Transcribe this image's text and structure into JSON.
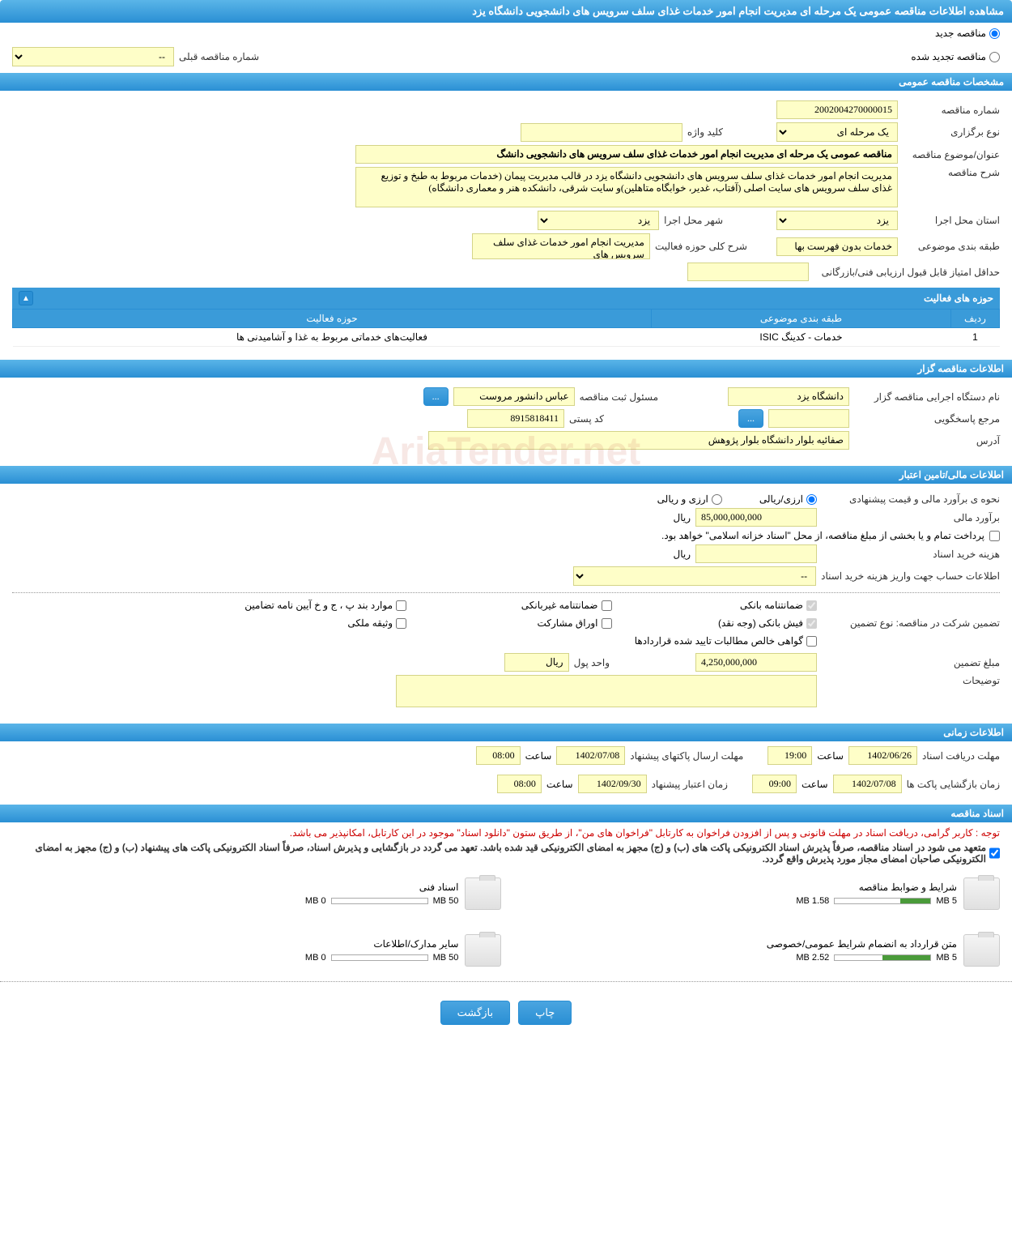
{
  "pageTitle": "مشاهده اطلاعات مناقصه عمومی یک مرحله ای مدیریت انجام امور خدمات غذای سلف سرویس های دانشجویی دانشگاه یزد",
  "tenderType": {
    "new": "مناقصه جدید",
    "renewed": "مناقصه تجدید شده",
    "prevNumberLabel": "شماره مناقصه قبلی",
    "prevNumberValue": "--"
  },
  "sections": {
    "general": "مشخصات مناقصه عمومی",
    "organizer": "اطلاعات مناقصه گزار",
    "financial": "اطلاعات مالی/تامین اعتبار",
    "timing": "اطلاعات زمانی",
    "documents": "اسناد مناقصه"
  },
  "general": {
    "tenderNumberLabel": "شماره مناقصه",
    "tenderNumber": "2002004270000015",
    "holdingTypeLabel": "نوع برگزاری",
    "holdingType": "یک مرحله ای",
    "keywordLabel": "کلید واژه",
    "keyword": "",
    "subjectLabel": "عنوان/موضوع مناقصه",
    "subject": "مناقصه عمومی یک مرحله ای مدیریت انجام امور خدمات غذای سلف سرویس های دانشجویی دانشگ",
    "descLabel": "شرح مناقصه",
    "desc": "مدیریت انجام امور خدمات غذای سلف سرویس های دانشجویی دانشگاه یزد در قالب مدیریت پیمان (خدمات مربوط به طبخ و توزیع  غذای سلف سرویس های سایت اصلی (آفتاب، غدیر، خوابگاه متاهلین)و سایت شرقی، دانشکده هنر و معماری دانشگاه)",
    "provinceLabel": "استان محل اجرا",
    "province": "یزد",
    "cityLabel": "شهر محل اجرا",
    "city": "یزد",
    "categoryLabel": "طبقه بندی موضوعی",
    "category": "خدمات بدون فهرست بها",
    "activityScopeLabel": "شرح کلی حوزه فعالیت",
    "activityScope": "مدیریت انجام امور خدمات غذای سلف سرویس های",
    "minScoreLabel": "حداقل امتیاز قابل قبول ارزیابی فنی/بازرگانی",
    "minScore": ""
  },
  "activities": {
    "header": "حوزه های فعالیت",
    "columns": [
      "ردیف",
      "طبقه بندی موضوعی",
      "حوزه فعالیت"
    ],
    "rows": [
      [
        "1",
        "خدمات - کدینگ ISIC",
        "فعالیت‌های خدماتی مربوط به غذا و آشامیدنی ها"
      ]
    ]
  },
  "organizer": {
    "agencyLabel": "نام دستگاه اجرایی مناقصه گزار",
    "agency": "دانشگاه یزد",
    "registrarLabel": "مسئول ثبت مناقصه",
    "registrar": "عباس دانشور مروست",
    "responseLabel": "مرجع پاسخگویی",
    "response": "",
    "postalLabel": "کد پستی",
    "postal": "8915818411",
    "addressLabel": "آدرس",
    "address": "صفائیه بلوار دانشگاه بلوار پژوهش"
  },
  "financial": {
    "estimateMethodLabel": "نحوه ی برآورد مالی و قیمت پیشنهادی",
    "rialCurrency": "ارزی/ریالی",
    "foreignCurrency": "ارزی و ریالی",
    "estimateLabel": "برآورد مالی",
    "estimate": "85,000,000,000",
    "rial": "ریال",
    "paymentNote": "پرداخت تمام و یا بخشی از مبلغ مناقصه، از محل \"اسناد خزانه اسلامی\" خواهد بود.",
    "docFeeLabel": "هزینه خرید اسناد",
    "docFee": "",
    "accountLabel": "اطلاعات حساب جهت واریز هزینه خرید اسناد",
    "accountValue": "--",
    "guaranteeTypeLabel": "تضمین شرکت در مناقصه:    نوع تضمین",
    "guaranteeTypes": {
      "bank": "ضمانتنامه بانکی",
      "nonbank": "ضمانتنامه غیربانکی",
      "bondItems": "موارد بند پ ، ج و خ آیین نامه تضامین",
      "cash": "فیش بانکی (وجه نقد)",
      "participation": "اوراق مشارکت",
      "property": "وثیقه ملکی",
      "netClaims": "گواهی خالص مطالبات تایید شده قراردادها"
    },
    "guaranteeAmountLabel": "مبلغ تضمین",
    "guaranteeAmount": "4,250,000,000",
    "currencyUnitLabel": "واحد پول",
    "currencyUnit": "ریال",
    "notesLabel": "توضیحات",
    "notes": ""
  },
  "timing": {
    "docDeadlineLabel": "مهلت دریافت اسناد",
    "docDeadlineDate": "1402/06/26",
    "docDeadlineTime": "19:00",
    "envelopeDeadlineLabel": "مهلت ارسال پاکتهای پیشنهاد",
    "envelopeDeadlineDate": "1402/07/08",
    "envelopeDeadlineTime": "08:00",
    "openingLabel": "زمان بازگشایی پاکت ها",
    "openingDate": "1402/07/08",
    "openingTime": "09:00",
    "validityLabel": "زمان اعتبار پیشنهاد",
    "validityDate": "1402/09/30",
    "validityTime": "08:00",
    "timeLabel": "ساعت"
  },
  "documents": {
    "notice": "توجه : کاربر گرامی، دریافت اسناد در مهلت قانونی و پس از افزودن فراخوان به کارتابل \"فراخوان های من\"، از طریق ستون \"دانلود اسناد\" موجود در این کارتابل، امکانپذیر می باشد.",
    "commitment": "متعهد می شود در اسناد مناقصه، صرفاً پذیرش اسناد الکترونیکی پاکت های (ب) و (ج) مجهز به امضای الکترونیکی قید شده باشد. تعهد می گردد در بازگشایی و پذیرش اسناد، صرفاً اسناد الکترونیکی پاکت های پیشنهاد (ب) و (ج) مجهز به امضای الکترونیکی صاحبان امضای مجاز مورد پذیرش واقع گردد.",
    "items": [
      {
        "title": "شرایط و ضوابط مناقصه",
        "used": "1.58 MB",
        "total": "5 MB",
        "percent": 32
      },
      {
        "title": "اسناد فنی",
        "used": "0 MB",
        "total": "50 MB",
        "percent": 0
      },
      {
        "title": "متن قرارداد به انضمام شرایط عمومی/خصوصی",
        "used": "2.52 MB",
        "total": "5 MB",
        "percent": 50
      },
      {
        "title": "سایر مدارک/اطلاعات",
        "used": "0 MB",
        "total": "50 MB",
        "percent": 0
      }
    ]
  },
  "buttons": {
    "print": "چاپ",
    "back": "بازگشت",
    "more": "..."
  },
  "watermark": "AriaTender.net"
}
